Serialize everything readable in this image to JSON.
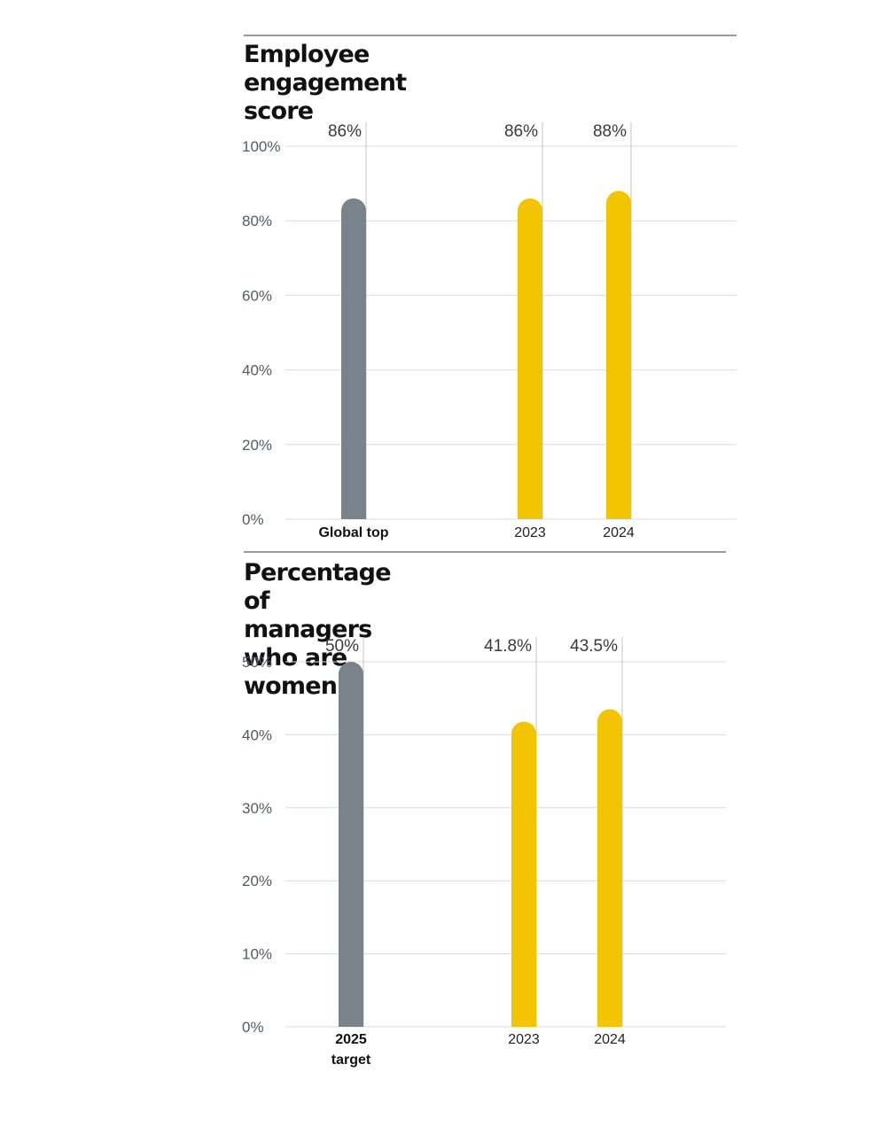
{
  "colors": {
    "benchmark": "#7a828a",
    "actual": "#f3c500",
    "grid": "#dcdcdc"
  },
  "chart_data": [
    {
      "type": "bar",
      "title": "Employee engagement score",
      "categories": [
        "Global top",
        "2023",
        "2024"
      ],
      "category_bold": [
        true,
        false,
        false
      ],
      "values": [
        86,
        86,
        88
      ],
      "value_labels": [
        "86%",
        "86%",
        "88%"
      ],
      "yticks": [
        "0%",
        "20%",
        "40%",
        "60%",
        "80%",
        "100%"
      ],
      "ylim": [
        0,
        100
      ],
      "grid": true,
      "legend": "none"
    },
    {
      "type": "bar",
      "title": "Percentage of managers who are\nwomen",
      "categories": [
        "2025\ntarget",
        "2023",
        "2024"
      ],
      "category_bold": [
        true,
        false,
        false
      ],
      "values": [
        50,
        41.8,
        43.5
      ],
      "value_labels": [
        "50%",
        "41.8%",
        "43.5%"
      ],
      "yticks": [
        "0%",
        "10%",
        "20%",
        "30%",
        "40%",
        "50%"
      ],
      "ylim": [
        0,
        50
      ],
      "grid": true,
      "legend": "none"
    }
  ]
}
